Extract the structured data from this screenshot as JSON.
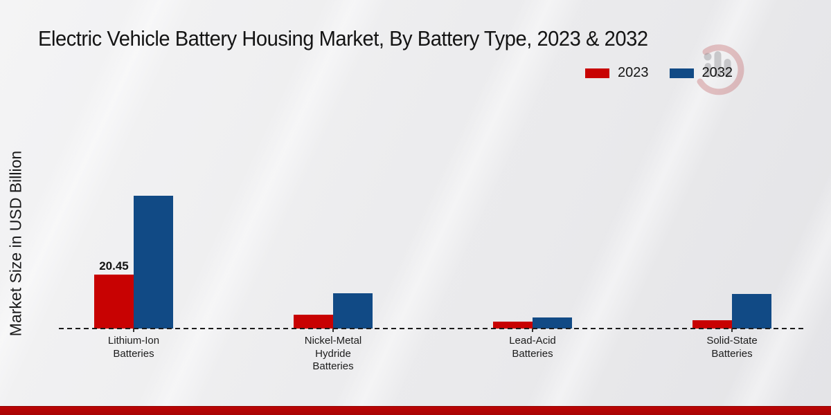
{
  "chart_data": {
    "type": "bar",
    "title": "Electric Vehicle Battery Housing Market, By Battery Type, 2023 & 2032",
    "ylabel": "Market Size in USD Billion",
    "categories": [
      "Lithium-Ion\nBatteries",
      "Nickel-Metal\nHydride\nBatteries",
      "Lead-Acid\nBatteries",
      "Solid-State\nBatteries"
    ],
    "series": [
      {
        "name": "2023",
        "color": "#c80202",
        "values": [
          20.45,
          5.2,
          2.6,
          3.2
        ]
      },
      {
        "name": "2032",
        "color": "#114a85",
        "values": [
          50.3,
          13.4,
          4.2,
          13.1
        ]
      }
    ],
    "ylim": [
      0,
      52
    ],
    "bar_labels": [
      {
        "series_index": 0,
        "category_index": 0,
        "text": "20.45"
      }
    ],
    "legend_position": "top-right",
    "grid": false,
    "baseline_style": "dashed",
    "accent_bar_color": "#b30505",
    "watermark": "market-research-future-logo"
  }
}
